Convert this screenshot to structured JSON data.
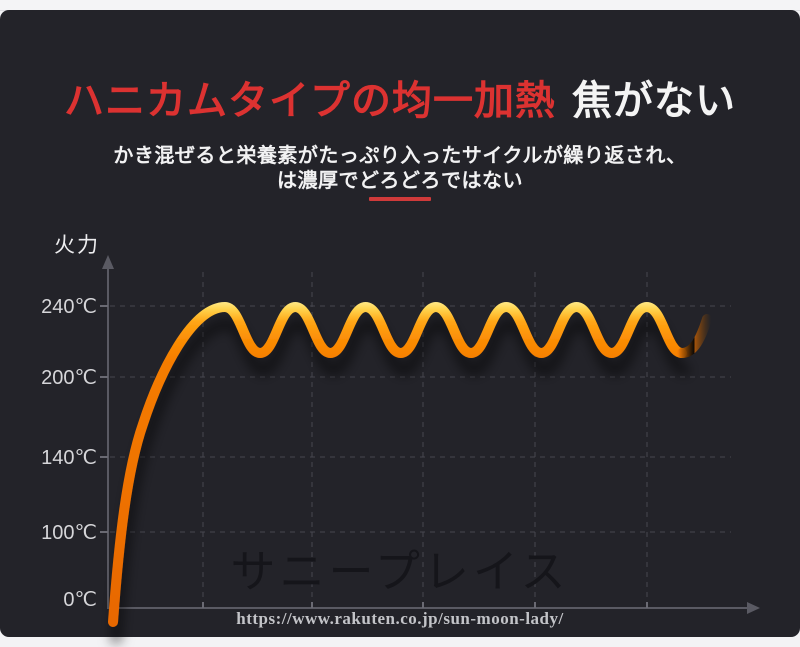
{
  "header": {
    "title_red": "ハニカムタイプの均一加熱",
    "title_white": "焦がない",
    "subtitle_line1": "かき混ぜると栄養素がたっぷり入ったサイクルが繰り返され、",
    "subtitle_line2": "は濃厚でどろどろではない",
    "accent_color": "#dc3231"
  },
  "chart_data": {
    "type": "line",
    "ylabel": "火力",
    "xlabel": "",
    "y_ticks": [
      {
        "label": "240℃",
        "value": 240
      },
      {
        "label": "200℃",
        "value": 200
      },
      {
        "label": "140℃",
        "value": 140
      },
      {
        "label": "100℃",
        "value": 100
      },
      {
        "label": "0℃",
        "value": 0
      }
    ],
    "series": [
      {
        "name": "heating-temperature",
        "description": "steep rise from 0℃ then sustained rounded-square oscillation between trough and peak",
        "start_temp_c": 0,
        "peak_temp_c": 240,
        "trough_temp_c": 212,
        "num_cycles": 7
      }
    ],
    "grid": "dashed",
    "legend_position": "none",
    "line_colors": {
      "highlight": "#ffd44e",
      "main": "#f57c03",
      "deep": "#e76700"
    }
  },
  "watermark": {
    "text": "サニープレイス"
  },
  "footer": {
    "url": "https://www.rakuten.co.jp/sun-moon-lady/"
  }
}
